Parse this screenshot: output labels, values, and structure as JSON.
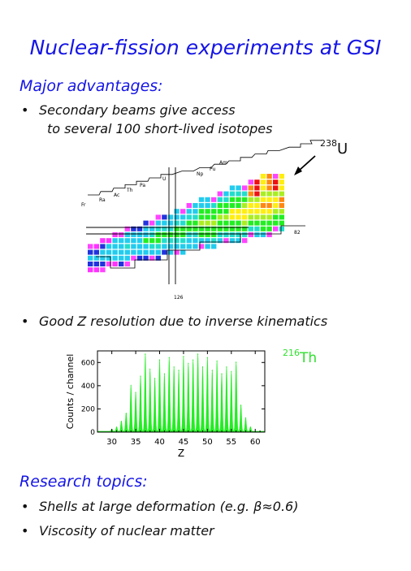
{
  "title": "Nuclear-fission experiments at GSI",
  "sections": {
    "advantages": "Major advantages:",
    "research": "Research topics:"
  },
  "bullets": {
    "secondary_beams": [
      "Secondary beams give access",
      "to several 100 short-lived isotopes"
    ],
    "z_resolution": "Good Z resolution due to inverse kinematics",
    "shells": "Shells at large deformation (e.g. β≈0.6)",
    "viscosity": "Viscosity of nuclear matter"
  },
  "nuclide_chart": {
    "element_labels": [
      "Fr",
      "Ra",
      "Ac",
      "Th",
      "Pa",
      "U",
      "Np",
      "Pu",
      "Am"
    ],
    "neutron_magic_label": "126",
    "proton_magic_label": "82",
    "beam_isotope": {
      "mass": "238",
      "symbol": "U"
    }
  },
  "colors": {
    "title_blue": "#1515e6",
    "spectrum_green": "#22ee22",
    "arrow": "#000000"
  },
  "chart_data": {
    "type": "area",
    "title": "",
    "annotation": {
      "mass": "216",
      "symbol": "Th"
    },
    "xlabel": "Z",
    "ylabel": "Counts / channel",
    "xlim": [
      27,
      62
    ],
    "ylim": [
      0,
      700
    ],
    "xticks": [
      "30",
      "35",
      "40",
      "45",
      "50",
      "55",
      "60"
    ],
    "yticks": [
      "0",
      "200",
      "400",
      "600"
    ],
    "peaks": [
      {
        "z": 30,
        "y": 20
      },
      {
        "z": 31,
        "y": 40
      },
      {
        "z": 32,
        "y": 90
      },
      {
        "z": 33,
        "y": 160
      },
      {
        "z": 34,
        "y": 400
      },
      {
        "z": 35,
        "y": 340
      },
      {
        "z": 36,
        "y": 480
      },
      {
        "z": 37,
        "y": 670
      },
      {
        "z": 38,
        "y": 540
      },
      {
        "z": 39,
        "y": 460
      },
      {
        "z": 40,
        "y": 620
      },
      {
        "z": 41,
        "y": 500
      },
      {
        "z": 42,
        "y": 640
      },
      {
        "z": 43,
        "y": 560
      },
      {
        "z": 44,
        "y": 530
      },
      {
        "z": 45,
        "y": 650
      },
      {
        "z": 46,
        "y": 590
      },
      {
        "z": 47,
        "y": 620
      },
      {
        "z": 48,
        "y": 670
      },
      {
        "z": 49,
        "y": 560
      },
      {
        "z": 50,
        "y": 640
      },
      {
        "z": 51,
        "y": 530
      },
      {
        "z": 52,
        "y": 610
      },
      {
        "z": 53,
        "y": 500
      },
      {
        "z": 54,
        "y": 560
      },
      {
        "z": 55,
        "y": 520
      },
      {
        "z": 56,
        "y": 600
      },
      {
        "z": 57,
        "y": 230
      },
      {
        "z": 58,
        "y": 120
      },
      {
        "z": 59,
        "y": 40
      }
    ]
  }
}
